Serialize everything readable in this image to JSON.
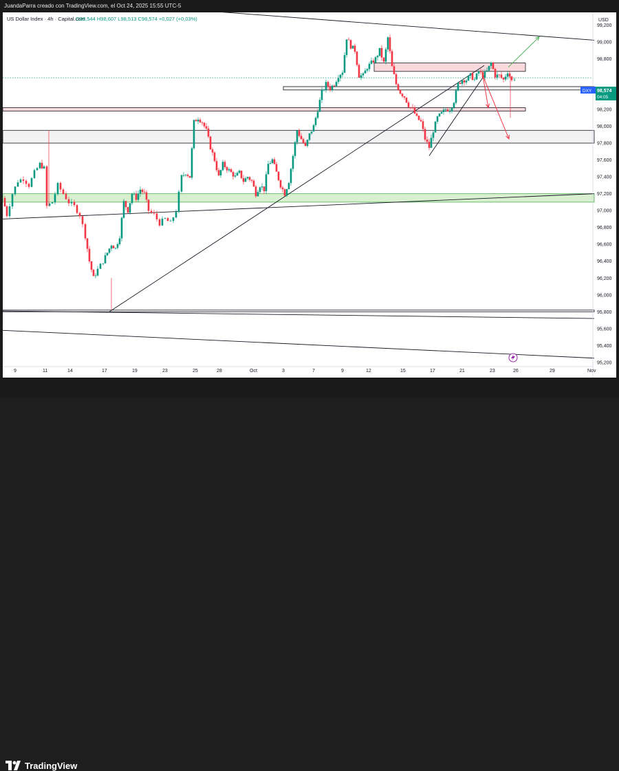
{
  "header": {
    "caption": "JuandaParra creado con TradingView.com, el Oct 24, 2025 15:55 UTC-5"
  },
  "legend": {
    "symbol": "US Dollar Index · 4h · Capital.com",
    "ohlc": "O98,544  H98,607  L98,513  C98,574  +0,027 (+0,03%)"
  },
  "price_scale": {
    "currency": "USD"
  },
  "last_price_tag": {
    "symbol": "DXY",
    "price": "98,574",
    "countdown": "04:05"
  },
  "footer": {
    "brand": "TradingView"
  },
  "colors": {
    "up": "#089981",
    "down": "#f23645",
    "zone_red_fill": "#f9d9db",
    "zone_green_fill": "#d8f0cf",
    "zone_gray_fill": "#f2f2f2"
  },
  "chart_data": {
    "type": "candlestick",
    "ylim": [
      95.15,
      99.35
    ],
    "y_ticks": [
      {
        "value": 99.2,
        "label": "99,200"
      },
      {
        "value": 99.0,
        "label": "99,000"
      },
      {
        "value": 98.8,
        "label": "98,800"
      },
      {
        "value": 98.4,
        "label": "98,400"
      },
      {
        "value": 98.2,
        "label": "98,200"
      },
      {
        "value": 98.0,
        "label": "98,000"
      },
      {
        "value": 97.8,
        "label": "97,800"
      },
      {
        "value": 97.6,
        "label": "97,600"
      },
      {
        "value": 97.4,
        "label": "97,400"
      },
      {
        "value": 97.2,
        "label": "97,200"
      },
      {
        "value": 97.0,
        "label": "97,000"
      },
      {
        "value": 96.8,
        "label": "96,800"
      },
      {
        "value": 96.6,
        "label": "96,600"
      },
      {
        "value": 96.4,
        "label": "96,400"
      },
      {
        "value": 96.2,
        "label": "96,200"
      },
      {
        "value": 96.0,
        "label": "96,000"
      },
      {
        "value": 95.8,
        "label": "95,800"
      },
      {
        "value": 95.6,
        "label": "95,600"
      },
      {
        "value": 95.4,
        "label": "95,400"
      },
      {
        "value": 95.2,
        "label": "95,200"
      }
    ],
    "x_ticks": [
      "9",
      "11",
      "14",
      "17",
      "19",
      "23",
      "25",
      "28",
      "Oct",
      "3",
      "7",
      "9",
      "12",
      "15",
      "17",
      "21",
      "23",
      "26",
      "29",
      "Nov"
    ],
    "candle_path": [
      [
        0,
        97.15
      ],
      [
        6,
        96.95
      ],
      [
        14,
        97.2
      ],
      [
        22,
        97.35
      ],
      [
        30,
        97.38
      ],
      [
        38,
        97.3
      ],
      [
        46,
        97.45
      ],
      [
        54,
        97.55
      ],
      [
        60,
        97.5
      ],
      [
        64,
        97.05
      ],
      [
        72,
        97.1
      ],
      [
        80,
        97.3
      ],
      [
        88,
        97.2
      ],
      [
        96,
        97.1
      ],
      [
        104,
        97.05
      ],
      [
        112,
        96.95
      ],
      [
        120,
        96.7
      ],
      [
        126,
        96.4
      ],
      [
        132,
        96.2
      ],
      [
        138,
        96.3
      ],
      [
        146,
        96.4
      ],
      [
        152,
        96.5
      ],
      [
        158,
        96.6
      ],
      [
        164,
        96.55
      ],
      [
        170,
        96.7
      ],
      [
        176,
        97.1
      ],
      [
        182,
        97.0
      ],
      [
        188,
        97.2
      ],
      [
        194,
        97.15
      ],
      [
        200,
        97.25
      ],
      [
        206,
        97.2
      ],
      [
        212,
        97.0
      ],
      [
        220,
        96.95
      ],
      [
        228,
        96.85
      ],
      [
        236,
        96.9
      ],
      [
        244,
        96.85
      ],
      [
        252,
        97.0
      ],
      [
        260,
        97.4
      ],
      [
        266,
        97.45
      ],
      [
        272,
        97.4
      ],
      [
        278,
        98.05
      ],
      [
        284,
        98.1
      ],
      [
        290,
        98.05
      ],
      [
        296,
        97.95
      ],
      [
        302,
        97.75
      ],
      [
        308,
        97.6
      ],
      [
        314,
        97.4
      ],
      [
        320,
        97.55
      ],
      [
        326,
        97.5
      ],
      [
        332,
        97.45
      ],
      [
        338,
        97.4
      ],
      [
        344,
        97.45
      ],
      [
        350,
        97.35
      ],
      [
        356,
        97.4
      ],
      [
        362,
        97.35
      ],
      [
        368,
        97.2
      ],
      [
        374,
        97.3
      ],
      [
        380,
        97.25
      ],
      [
        386,
        97.55
      ],
      [
        392,
        97.6
      ],
      [
        398,
        97.45
      ],
      [
        404,
        97.3
      ],
      [
        410,
        97.2
      ],
      [
        416,
        97.35
      ],
      [
        422,
        97.65
      ],
      [
        428,
        97.95
      ],
      [
        434,
        97.85
      ],
      [
        440,
        97.75
      ],
      [
        446,
        97.9
      ],
      [
        452,
        98.0
      ],
      [
        458,
        98.2
      ],
      [
        464,
        98.4
      ],
      [
        470,
        98.5
      ],
      [
        476,
        98.45
      ],
      [
        482,
        98.5
      ],
      [
        488,
        98.6
      ],
      [
        494,
        98.65
      ],
      [
        500,
        99.05
      ],
      [
        506,
        98.95
      ],
      [
        512,
        98.9
      ],
      [
        518,
        98.6
      ],
      [
        524,
        98.6
      ],
      [
        530,
        98.7
      ],
      [
        536,
        98.75
      ],
      [
        542,
        98.8
      ],
      [
        548,
        98.9
      ],
      [
        554,
        98.75
      ],
      [
        560,
        99.05
      ],
      [
        566,
        98.7
      ],
      [
        572,
        98.5
      ],
      [
        578,
        98.4
      ],
      [
        584,
        98.35
      ],
      [
        590,
        98.25
      ],
      [
        596,
        98.2
      ],
      [
        602,
        98.1
      ],
      [
        608,
        98.05
      ],
      [
        614,
        97.85
      ],
      [
        620,
        97.75
      ],
      [
        626,
        97.95
      ],
      [
        632,
        98.1
      ],
      [
        638,
        98.15
      ],
      [
        644,
        98.2
      ],
      [
        650,
        98.2
      ],
      [
        656,
        98.3
      ],
      [
        662,
        98.5
      ],
      [
        668,
        98.55
      ],
      [
        674,
        98.55
      ],
      [
        680,
        98.6
      ],
      [
        686,
        98.55
      ],
      [
        692,
        98.65
      ],
      [
        698,
        98.6
      ],
      [
        704,
        98.65
      ],
      [
        710,
        98.75
      ],
      [
        716,
        98.6
      ],
      [
        722,
        98.6
      ],
      [
        728,
        98.55
      ],
      [
        734,
        98.65
      ],
      [
        740,
        98.54
      ],
      [
        744,
        98.574
      ]
    ],
    "zones": [
      {
        "name": "resistance-zone-upper",
        "y": [
          98.65,
          98.75
        ],
        "x": [
          540,
          760
        ],
        "style": "red"
      },
      {
        "name": "support-band-98-4",
        "y": [
          98.43,
          98.47
        ],
        "x": [
          408,
          860
        ],
        "style": "gray"
      },
      {
        "name": "resistance-zone-98-2",
        "y": [
          98.18,
          98.22
        ],
        "x": [
          0,
          760
        ],
        "style": "red"
      },
      {
        "name": "gray-band-97-8",
        "y": [
          97.8,
          97.95
        ],
        "x": [
          0,
          860
        ],
        "style": "gray"
      },
      {
        "name": "green-support-zone",
        "y": [
          97.1,
          97.2
        ],
        "x": [
          0,
          860
        ],
        "style": "green"
      },
      {
        "name": "gray-band-95-8",
        "y": [
          95.8,
          95.82
        ],
        "x": [
          0,
          860
        ],
        "style": "gray-line"
      }
    ],
    "trendlines": [
      {
        "name": "descending-trendline-top",
        "from": [
          0,
          99.55
        ],
        "to": [
          860,
          99.02
        ]
      },
      {
        "name": "ascending-trendline-main",
        "from": [
          155,
          95.8
        ],
        "to": [
          700,
          98.72
        ]
      },
      {
        "name": "rising-channel-line",
        "from": [
          620,
          97.65
        ],
        "to": [
          700,
          98.6
        ]
      },
      {
        "name": "lower-channel-line",
        "from": [
          0,
          96.9
        ],
        "to": [
          860,
          97.2
        ]
      },
      {
        "name": "support-line-95-8",
        "from": [
          0,
          95.81
        ],
        "to": [
          860,
          95.72
        ]
      },
      {
        "name": "descending-trendline-bottom",
        "from": [
          0,
          95.58
        ],
        "to": [
          860,
          95.25
        ]
      }
    ],
    "arrows": [
      {
        "name": "bullish-arrow",
        "from": [
          735,
          98.7
        ],
        "to": [
          780,
          99.06
        ],
        "color": "#4caf50"
      },
      {
        "name": "bearish-arrow-short",
        "from": [
          698,
          98.6
        ],
        "to": [
          706,
          98.22
        ],
        "color": "#f23645"
      },
      {
        "name": "bearish-arrow-long",
        "from": [
          698,
          98.6
        ],
        "to": [
          736,
          97.85
        ],
        "color": "#f23645"
      }
    ],
    "pivot_wicks": [
      {
        "x": 67,
        "high": 97.95,
        "low": 97.05
      },
      {
        "x": 158,
        "high": 96.2,
        "low": 95.82
      },
      {
        "x": 738,
        "high": 98.62,
        "low": 98.1
      }
    ]
  }
}
